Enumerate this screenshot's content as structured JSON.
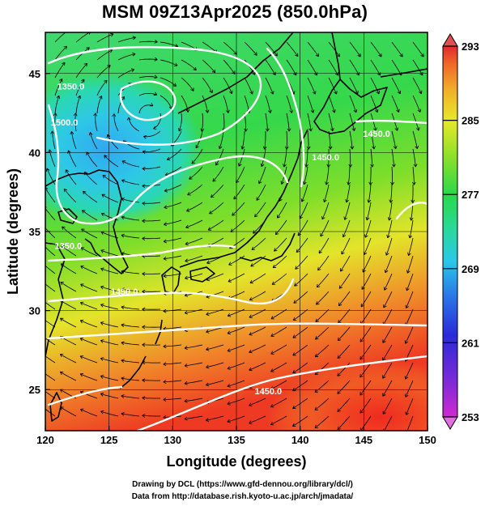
{
  "title": "MSM 09Z13Apr2025 (850.0hPa)",
  "map": {
    "xlabel": "Longitude (degrees)",
    "ylabel": "Latitude  (degrees)",
    "x_range": [
      120,
      150
    ],
    "y_range": [
      22.4,
      47.6
    ],
    "x_ticks": [
      "120",
      "125",
      "130",
      "135",
      "140",
      "145",
      "150"
    ],
    "y_ticks": [
      "25",
      "30",
      "35",
      "40",
      "45"
    ],
    "grid": true,
    "contour_labels": [
      {
        "text": "1350.0",
        "lon": 122.0,
        "lat": 44.0
      },
      {
        "text": "1500.0",
        "lon": 121.5,
        "lat": 41.7
      },
      {
        "text": "1350.0",
        "lon": 121.8,
        "lat": 33.9
      },
      {
        "text": "1450.0",
        "lon": 126.2,
        "lat": 31.0
      },
      {
        "text": "1450.0",
        "lon": 146.0,
        "lat": 41.0
      },
      {
        "text": "1450.0",
        "lon": 142.0,
        "lat": 39.5
      },
      {
        "text": "1450.0",
        "lon": 137.5,
        "lat": 24.7
      }
    ],
    "vortex_center": {
      "lon": 128.0,
      "lat": 42.5
    }
  },
  "colorbar": {
    "ticks": [
      "293",
      "285",
      "277",
      "269",
      "261",
      "253"
    ],
    "range": [
      253,
      293
    ],
    "colors": [
      "#d02ad0",
      "#7a2ad8",
      "#2a2ad8",
      "#2a7ae8",
      "#2ac8e8",
      "#2ad8a0",
      "#2ad84a",
      "#8ae02a",
      "#e8e82a",
      "#f0b02a",
      "#f06a2a",
      "#e02a2a"
    ]
  },
  "credits": [
    "Drawing by DCL (https://www.gfd-dennou.org/library/dcl/)",
    "Data from http://database.rish.kyoto-u.ac.jp/arch/jmadata/"
  ]
}
